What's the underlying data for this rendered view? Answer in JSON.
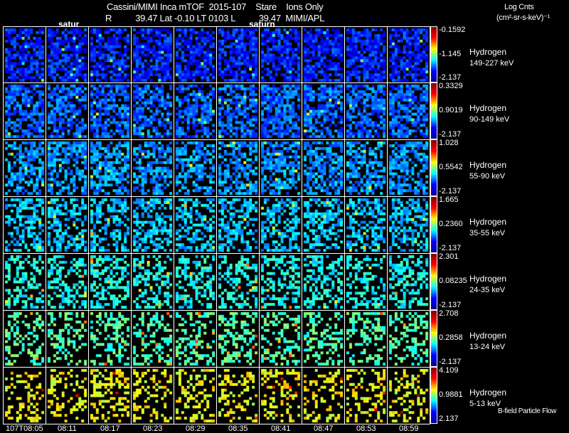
{
  "header": {
    "title_line1": "Cassini/MIMI Inca mTOF  2015-107    Stare    Ions Only",
    "title_line2": "R          39.47 Lat -0.10 LT 0103 L          39.47  MIMI/APL",
    "saturn_labels": [
      "satur",
      "saturn"
    ]
  },
  "units": {
    "line1": "Log Cnts",
    "line2": "(cm²-sr-s-keV)⁻¹"
  },
  "footer": {
    "note": "B-field Particle Flow"
  },
  "chart_data": {
    "type": "heatmap",
    "title": "Cassini/MIMI Inca mTOF 2015-107 Stare Ions Only",
    "x_ticks": [
      "107T08:05",
      "08:11",
      "08:17",
      "08:23",
      "08:29",
      "08:35",
      "08:41",
      "08:47",
      "08:53",
      "08:59"
    ],
    "colormap": "jet",
    "rows": [
      {
        "species": "Hydrogen",
        "energy": "149-227 keV",
        "max": "-0.1592",
        "mid": "-1.145",
        "min": "-2.137",
        "level": 0.15
      },
      {
        "species": "Hydrogen",
        "energy": "90-149 keV",
        "max": "0.3329",
        "mid": "0.9019",
        "min": "-2.137",
        "level": 0.22
      },
      {
        "species": "Hydrogen",
        "energy": "55-90 keV",
        "max": "1.028",
        "mid": "0.5542",
        "min": "-2.137",
        "level": 0.27
      },
      {
        "species": "Hydrogen",
        "energy": "35-55 keV",
        "max": "1.665",
        "mid": "0.2360",
        "min": "-2.137",
        "level": 0.32
      },
      {
        "species": "Hydrogen",
        "energy": "24-35 keV",
        "max": "2.301",
        "mid": "0.08235",
        "min": "-2.137",
        "level": 0.38
      },
      {
        "species": "Hydrogen",
        "energy": "13-24 keV",
        "max": "2.708",
        "mid": "0.2858",
        "min": "-2.137",
        "level": 0.45
      },
      {
        "species": "Hydrogen",
        "energy": "5-13 keV",
        "max": "4.109",
        "mid": "0.9881",
        "min": "2.137",
        "level": 0.62
      }
    ]
  }
}
